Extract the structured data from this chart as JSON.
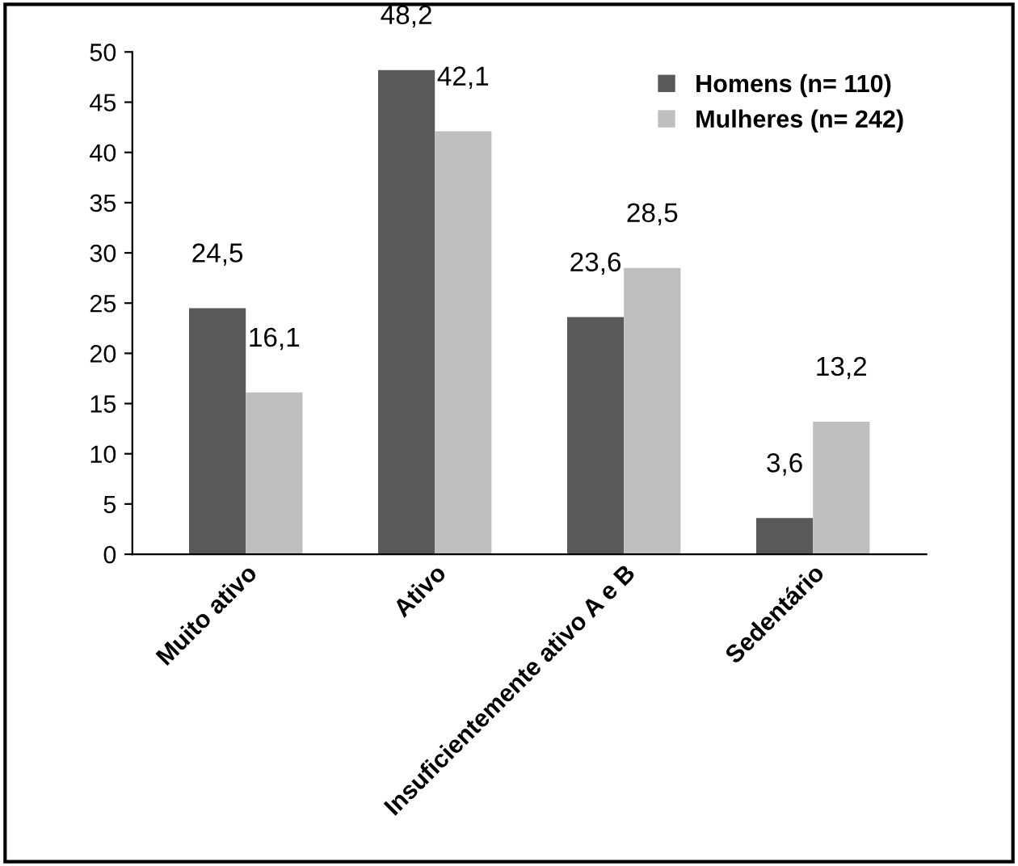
{
  "chart_data": {
    "type": "bar",
    "categories": [
      "Muito ativo",
      "Ativo",
      "Insuficientemente ativo A e B",
      "Sedentário"
    ],
    "series": [
      {
        "name": "Homens (n= 110)",
        "color": "#595959",
        "values": [
          24.5,
          48.2,
          23.6,
          3.6
        ],
        "value_labels": [
          "24,5",
          "48,2",
          "23,6",
          "3,6"
        ]
      },
      {
        "name": "Mulheres (n= 242)",
        "color": "#bfbfbf",
        "values": [
          16.1,
          42.1,
          28.5,
          13.2
        ],
        "value_labels": [
          "16,1",
          "42,1",
          "28,5",
          "13,2"
        ]
      }
    ],
    "ylim": [
      0,
      50
    ],
    "yticks": [
      0,
      5,
      10,
      15,
      20,
      25,
      30,
      35,
      40,
      45,
      50
    ],
    "grid": false,
    "legend": "top right"
  }
}
